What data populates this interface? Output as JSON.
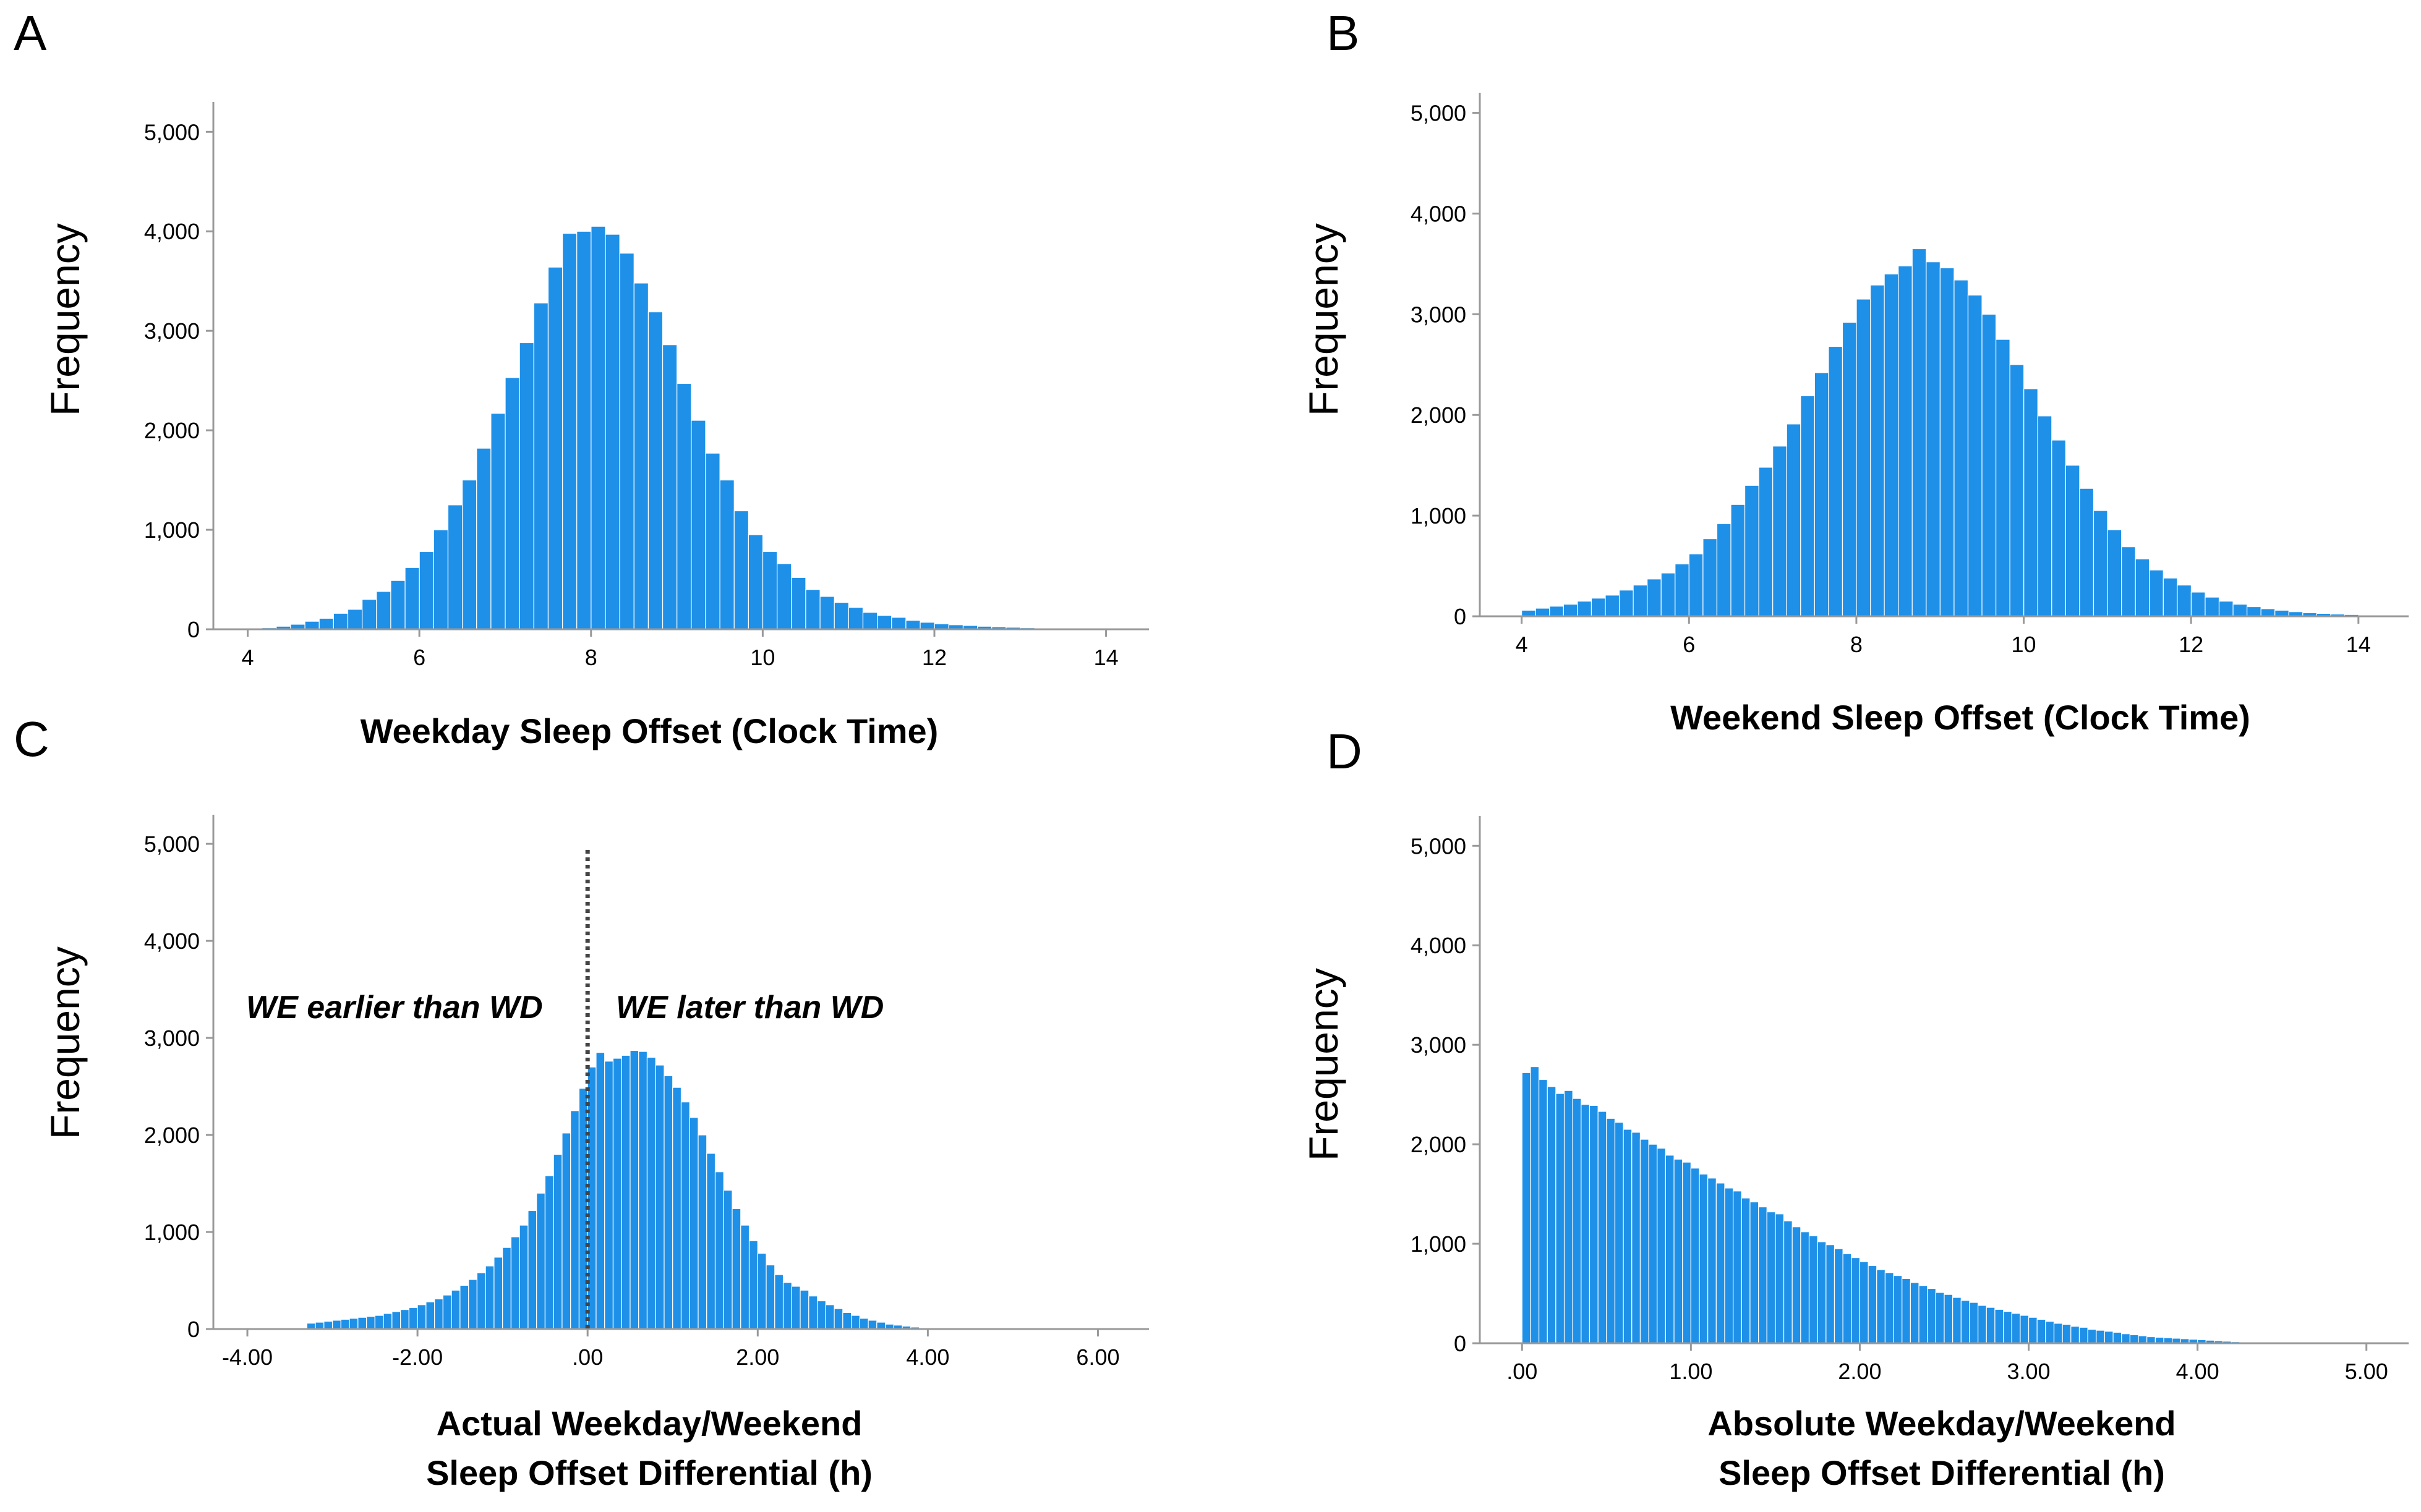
{
  "panels": {
    "A": {
      "letter": "A",
      "ylabel": "Frequency",
      "xlabel": "Weekday Sleep Offset (Clock Time)"
    },
    "B": {
      "letter": "B",
      "ylabel": "Frequency",
      "xlabel": "Weekend Sleep Offset (Clock Time)"
    },
    "C": {
      "letter": "C",
      "ylabel": "Frequency",
      "xlabel_line1": "Actual Weekday/Weekend",
      "xlabel_line2": "Sleep Offset Differential (h)",
      "annotation_left": "WE earlier than WD",
      "annotation_right": "WE later than WD"
    },
    "D": {
      "letter": "D",
      "ylabel": "Frequency",
      "xlabel_line1": "Absolute Weekday/Weekend",
      "xlabel_line2": "Sleep Offset Differential (h)"
    }
  },
  "colors": {
    "bar": "#1E90E8",
    "bar_edge": "#ffffff",
    "axis": "#999999",
    "refline": "#444444"
  },
  "chart_data": [
    {
      "id": "A",
      "type": "bar",
      "title": "",
      "xlabel": "Weekday Sleep Offset (Clock Time)",
      "ylabel": "Frequency",
      "xlim": [
        3.6,
        14.5
      ],
      "ylim": [
        0,
        5300
      ],
      "yticks": [
        0,
        1000,
        2000,
        3000,
        4000,
        5000
      ],
      "ytick_labels": [
        "0",
        "1,000",
        "2,000",
        "3,000",
        "4,000",
        "5,000"
      ],
      "xticks": [
        4,
        6,
        8,
        10,
        12,
        14
      ],
      "xtick_labels": [
        "4",
        "6",
        "8",
        "10",
        "12",
        "14"
      ],
      "bin_start": 4.0,
      "bin_width": 0.1667,
      "values": [
        5,
        15,
        30,
        50,
        80,
        110,
        160,
        200,
        300,
        380,
        490,
        620,
        780,
        1000,
        1250,
        1500,
        1820,
        2170,
        2530,
        2880,
        3280,
        3640,
        3980,
        4000,
        4050,
        3970,
        3780,
        3480,
        3190,
        2860,
        2470,
        2100,
        1770,
        1500,
        1190,
        950,
        780,
        660,
        520,
        400,
        330,
        270,
        220,
        170,
        140,
        120,
        90,
        70,
        55,
        45,
        38,
        30,
        25,
        20,
        15,
        12,
        10,
        8,
        6,
        5,
        4,
        3,
        2,
        2
      ]
    },
    {
      "id": "B",
      "type": "bar",
      "title": "",
      "xlabel": "Weekend Sleep Offset (Clock Time)",
      "ylabel": "Frequency",
      "xlim": [
        3.5,
        14.6
      ],
      "ylim": [
        0,
        5200
      ],
      "yticks": [
        0,
        1000,
        2000,
        3000,
        4000,
        5000
      ],
      "ytick_labels": [
        "0",
        "1,000",
        "2,000",
        "3,000",
        "4,000",
        "5,000"
      ],
      "xticks": [
        4,
        6,
        8,
        10,
        12,
        14
      ],
      "xtick_labels": [
        "4",
        "6",
        "8",
        "10",
        "12",
        "14"
      ],
      "bin_start": 4.0,
      "bin_width": 0.1667,
      "values": [
        60,
        80,
        100,
        120,
        150,
        180,
        210,
        260,
        310,
        370,
        430,
        520,
        620,
        770,
        920,
        1110,
        1300,
        1480,
        1690,
        1910,
        2190,
        2420,
        2680,
        2920,
        3150,
        3290,
        3400,
        3480,
        3650,
        3520,
        3460,
        3340,
        3190,
        3000,
        2750,
        2500,
        2260,
        1990,
        1750,
        1500,
        1270,
        1050,
        860,
        690,
        570,
        460,
        380,
        310,
        240,
        190,
        150,
        120,
        95,
        75,
        60,
        45,
        35,
        28,
        22,
        17,
        13,
        10,
        8,
        6,
        5,
        4
      ]
    },
    {
      "id": "C",
      "type": "bar",
      "title": "",
      "xlabel": "Actual Weekday/Weekend Sleep Offset Differential (h)",
      "ylabel": "Frequency",
      "xlim": [
        -4.4,
        6.6
      ],
      "ylim": [
        0,
        5300
      ],
      "yticks": [
        0,
        1000,
        2000,
        3000,
        4000,
        5000
      ],
      "ytick_labels": [
        "0",
        "1,000",
        "2,000",
        "3,000",
        "4,000",
        "5,000"
      ],
      "xticks": [
        -4,
        -2,
        0,
        2,
        4,
        6
      ],
      "xtick_labels": [
        "-4.00",
        "-2.00",
        ".00",
        "2.00",
        "4.00",
        "6.00"
      ],
      "bin_start": -3.3,
      "bin_width": 0.1,
      "reference_line_x": 0.0,
      "values": [
        60,
        70,
        80,
        90,
        100,
        110,
        120,
        130,
        140,
        160,
        180,
        200,
        220,
        250,
        280,
        310,
        350,
        400,
        450,
        510,
        580,
        650,
        740,
        840,
        950,
        1070,
        1220,
        1400,
        1580,
        1800,
        2020,
        2250,
        2480,
        2700,
        2850,
        2760,
        2790,
        2820,
        2870,
        2860,
        2800,
        2720,
        2610,
        2490,
        2340,
        2180,
        2000,
        1810,
        1620,
        1430,
        1240,
        1070,
        910,
        780,
        660,
        560,
        480,
        440,
        400,
        340,
        290,
        250,
        210,
        170,
        140,
        110,
        90,
        70,
        50,
        40,
        30,
        20,
        10,
        5,
        3,
        2,
        1,
        1
      ]
    },
    {
      "id": "D",
      "type": "bar",
      "title": "",
      "xlabel": "Absolute Weekday/Weekend Sleep Offset Differential (h)",
      "ylabel": "Frequency",
      "xlim": [
        -0.25,
        5.25
      ],
      "ylim": [
        0,
        5300
      ],
      "yticks": [
        0,
        1000,
        2000,
        3000,
        4000,
        5000
      ],
      "ytick_labels": [
        "0",
        "1,000",
        "2,000",
        "3,000",
        "4,000",
        "5,000"
      ],
      "xticks": [
        0,
        1,
        2,
        3,
        4,
        5
      ],
      "xtick_labels": [
        ".00",
        "1.00",
        "2.00",
        "3.00",
        "4.00",
        "5.00"
      ],
      "bin_start": 0.0,
      "bin_width": 0.05,
      "values": [
        2720,
        2780,
        2650,
        2580,
        2510,
        2540,
        2460,
        2400,
        2390,
        2330,
        2260,
        2220,
        2150,
        2120,
        2050,
        2000,
        1960,
        1890,
        1850,
        1820,
        1760,
        1700,
        1660,
        1610,
        1560,
        1530,
        1460,
        1420,
        1370,
        1320,
        1300,
        1230,
        1170,
        1120,
        1080,
        1020,
        990,
        950,
        900,
        860,
        820,
        780,
        740,
        710,
        680,
        650,
        610,
        580,
        550,
        510,
        490,
        460,
        430,
        410,
        380,
        360,
        340,
        320,
        300,
        280,
        260,
        240,
        220,
        200,
        190,
        170,
        160,
        140,
        130,
        120,
        110,
        95,
        85,
        75,
        65,
        60,
        55,
        50,
        45,
        40,
        35,
        30,
        25,
        20,
        15,
        12,
        10,
        8,
        6,
        4
      ]
    }
  ]
}
